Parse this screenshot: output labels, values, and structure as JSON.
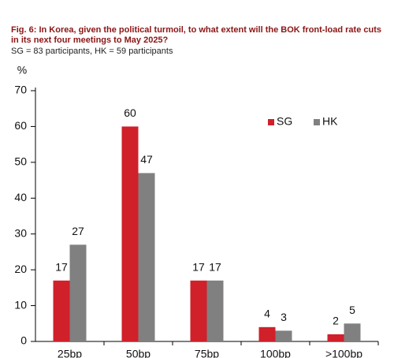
{
  "chart_data": {
    "type": "bar",
    "title": "Fig. 6: In Korea, given the political turmoil, to what extent will the BOK front-load rate cuts in its next four meetings to May 2025?",
    "subtitle": "SG = 83 participants, HK = 59 participants",
    "y_label": "%",
    "categories": [
      "25bp",
      "50bp",
      "75bp",
      "100bp",
      ">100bp"
    ],
    "series": [
      {
        "name": "SG",
        "color": "#d0202a",
        "values": [
          17,
          60,
          17,
          4,
          2
        ]
      },
      {
        "name": "HK",
        "color": "#808080",
        "values": [
          27,
          47,
          17,
          3,
          5
        ]
      }
    ],
    "ylim": [
      0,
      70
    ],
    "yticks": [
      0,
      10,
      20,
      30,
      40,
      50,
      60,
      70
    ],
    "grid": false,
    "legend": "upper right"
  }
}
